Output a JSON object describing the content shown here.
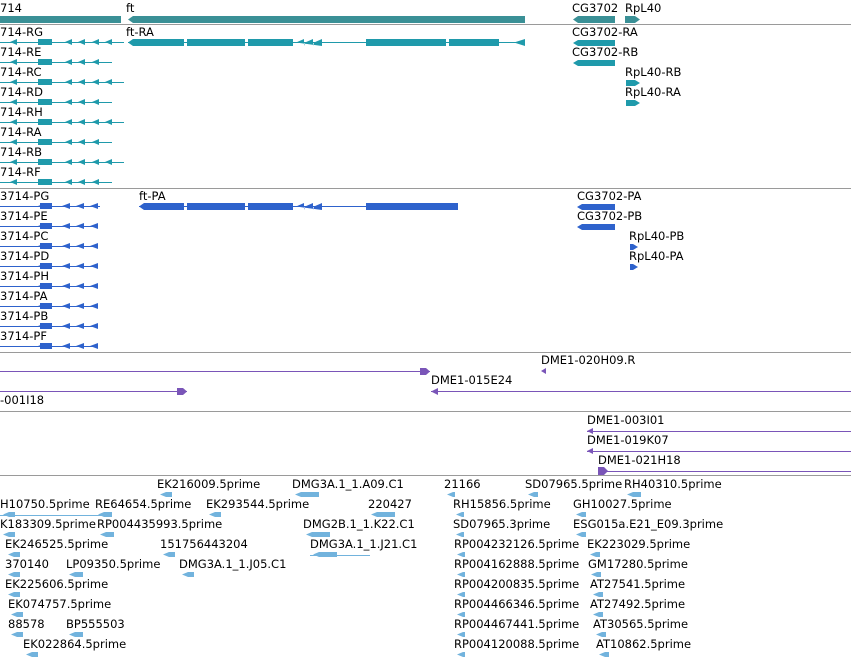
{
  "colors": {
    "gene_rna": "#1f9aab",
    "gene_rna_dark": "#3a9096",
    "protein": "#2e62cc",
    "clone": "#7a55b8",
    "est": "#72b3dd",
    "separator": "#9a9a9a"
  },
  "genes": {
    "left_gene": "714",
    "ft": "ft",
    "cg3702": "CG3702",
    "rpl40": "RpL40"
  },
  "transcripts": {
    "left": [
      "714-RG",
      "714-RE",
      "714-RC",
      "714-RD",
      "714-RH",
      "714-RA",
      "714-RB",
      "714-RF"
    ],
    "ft": "ft-RA",
    "cg3702": [
      "CG3702-RA",
      "CG3702-RB"
    ],
    "rpl40": [
      "RpL40-RB",
      "RpL40-RA"
    ]
  },
  "proteins": {
    "left": [
      "3714-PG",
      "3714-PE",
      "3714-PC",
      "3714-PD",
      "3714-PH",
      "3714-PA",
      "3714-PB",
      "3714-PF"
    ],
    "ft": "ft-PA",
    "cg3702": [
      "CG3702-PA",
      "CG3702-PB"
    ],
    "rpl40": [
      "RpL40-PB",
      "RpL40-PA"
    ]
  },
  "clones": {
    "track1": [
      "DME1-020H09.R",
      "DME1-015E24",
      "-001I18"
    ],
    "track2": [
      "DME1-003I01",
      "DME1-019K07",
      "DME1-021H18"
    ]
  },
  "ests": {
    "col1": [
      "H10750.5prime",
      "K183309.5prime",
      "EK246525.5prime",
      "370140",
      "EK225606.5prime",
      "EK074757.5prime",
      "88578",
      "EK022864.5prime"
    ],
    "col2": [
      "RE64654.5prime",
      "RP004435993.5prime",
      "LP09350.5prime",
      "BP555503"
    ],
    "col3": [
      "EK216009.5prime",
      "EK293544.5prime",
      "151756443204",
      "DMG3A.1_1.J05.C1"
    ],
    "col4": [
      "DMG3A.1_1.A09.C1",
      "220427",
      "DMG2B.1_1.K22.C1",
      "DMG3A.1_1.J21.C1"
    ],
    "col5": [
      "21166",
      "RH15856.5prime",
      "SD07965.3prime",
      "RP004232126.5prime",
      "RP004162888.5prime",
      "RP004200835.5prime",
      "RP004466346.5prime",
      "RP004467441.5prime",
      "RP004120088.5prime"
    ],
    "col6": [
      "SD07965.5prime",
      "GH10027.5prime",
      "ESG015a.E21_E09.3prime",
      "EK223029.5prime",
      "GM17280.5prime",
      "AT27541.5prime",
      "AT27492.5prime",
      "AT30565.5prime",
      "AT10862.5prime"
    ],
    "col7": [
      "RH40310.5prime"
    ]
  }
}
